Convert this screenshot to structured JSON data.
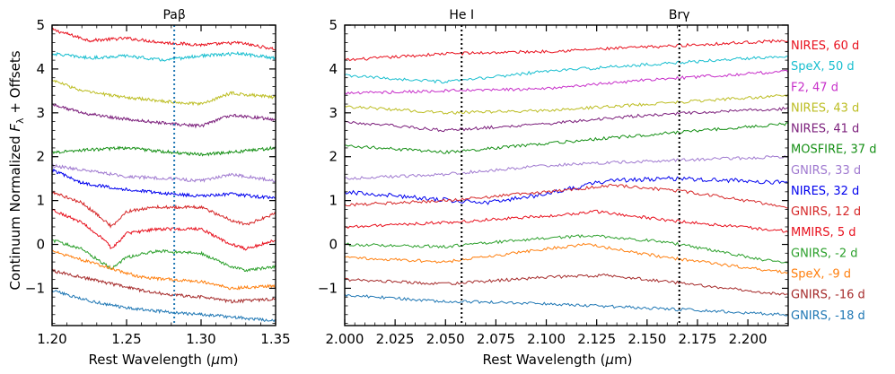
{
  "chart_data": {
    "type": "line",
    "shared": {
      "ylabel_prefix": "Continuum Normalized ",
      "ylabel_var": "F",
      "ylabel_sub": "λ",
      "ylabel_suffix": " + Offsets",
      "xlabel_prefix": "Rest Wavelength (",
      "xlabel_var": "μ",
      "xlabel_suffix": "m)",
      "ylim": [
        -1.85,
        5.0
      ],
      "yticks": [
        -1,
        0,
        1,
        2,
        3,
        4,
        5
      ],
      "ytick_labels": [
        "−1",
        "0",
        "1",
        "2",
        "3",
        "4",
        "5"
      ]
    },
    "legend": [
      {
        "label": "NIRES, 60 d",
        "color": "#e8101d"
      },
      {
        "label": "SpeX, 50 d",
        "color": "#17becf"
      },
      {
        "label": "F2, 47 d",
        "color": "#c72fc9"
      },
      {
        "label": "NIRES, 43 d",
        "color": "#bcbd22"
      },
      {
        "label": "NIRES, 41 d",
        "color": "#7b1e7b"
      },
      {
        "label": "MOSFIRE, 37 d",
        "color": "#148f14"
      },
      {
        "label": "GNIRS, 33 d",
        "color": "#a07ad0"
      },
      {
        "label": "NIRES, 32 d",
        "color": "#0000ee"
      },
      {
        "label": "GNIRS, 12 d",
        "color": "#d62728"
      },
      {
        "label": "MMIRS, 5 d",
        "color": "#e8101d"
      },
      {
        "label": "GNIRS, -2 d",
        "color": "#2ca02c"
      },
      {
        "label": "SpeX, -9 d",
        "color": "#ff7f0e"
      },
      {
        "label": "GNIRS, -16 d",
        "color": "#a52a2a"
      },
      {
        "label": "GNIRS, -18 d",
        "color": "#1f77b4"
      }
    ],
    "panels": [
      {
        "xlim": [
          1.2,
          1.35
        ],
        "xticks": [
          1.2,
          1.25,
          1.3,
          1.35
        ],
        "xtick_labels": [
          "1.20",
          "1.25",
          "1.30",
          "1.35"
        ],
        "lines": [
          {
            "label": "Paβ",
            "x": 1.282,
            "color": "#1f77b4",
            "style": "dotted"
          }
        ],
        "series": [
          {
            "name": "NIRES, 60 d",
            "x": [
              1.2,
              1.225,
              1.25,
              1.275,
              1.3,
              1.325,
              1.35
            ],
            "y": [
              4.9,
              4.65,
              4.7,
              4.6,
              4.55,
              4.6,
              4.45
            ]
          },
          {
            "name": "SpeX, 50 d",
            "x": [
              1.2,
              1.225,
              1.25,
              1.275,
              1.3,
              1.325,
              1.35
            ],
            "y": [
              4.35,
              4.25,
              4.3,
              4.2,
              4.3,
              4.35,
              4.25
            ]
          },
          {
            "name": "NIRES, 43 d",
            "x": [
              1.2,
              1.22,
              1.25,
              1.28,
              1.3,
              1.32,
              1.35
            ],
            "y": [
              3.75,
              3.5,
              3.35,
              3.25,
              3.2,
              3.45,
              3.35
            ]
          },
          {
            "name": "NIRES, 41 d",
            "x": [
              1.2,
              1.22,
              1.25,
              1.28,
              1.3,
              1.32,
              1.35
            ],
            "y": [
              3.2,
              3.0,
              2.85,
              2.75,
              2.7,
              2.95,
              2.85
            ]
          },
          {
            "name": "MOSFIRE, 37 d",
            "x": [
              1.2,
              1.22,
              1.25,
              1.28,
              1.3,
              1.32,
              1.35
            ],
            "y": [
              2.1,
              2.15,
              2.2,
              2.1,
              2.05,
              2.1,
              2.2
            ]
          },
          {
            "name": "GNIRS, 33 d",
            "x": [
              1.2,
              1.22,
              1.25,
              1.28,
              1.3,
              1.32,
              1.35
            ],
            "y": [
              1.8,
              1.7,
              1.55,
              1.5,
              1.45,
              1.6,
              1.45
            ]
          },
          {
            "name": "NIRES, 32 d",
            "x": [
              1.2,
              1.22,
              1.25,
              1.28,
              1.3,
              1.32,
              1.35
            ],
            "y": [
              1.7,
              1.4,
              1.25,
              1.15,
              1.1,
              1.15,
              1.05
            ]
          },
          {
            "name": "GNIRS, 12 d",
            "x": [
              1.2,
              1.22,
              1.235,
              1.24,
              1.25,
              1.27,
              1.3,
              1.32,
              1.33,
              1.35
            ],
            "y": [
              1.2,
              0.95,
              0.55,
              0.4,
              0.75,
              0.85,
              0.85,
              0.55,
              0.45,
              0.7
            ]
          },
          {
            "name": "MMIRS, 5 d",
            "x": [
              1.2,
              1.22,
              1.235,
              1.24,
              1.25,
              1.27,
              1.3,
              1.32,
              1.33,
              1.35
            ],
            "y": [
              0.8,
              0.5,
              0.1,
              -0.1,
              0.25,
              0.35,
              0.35,
              0.0,
              -0.1,
              0.1
            ]
          },
          {
            "name": "GNIRS, -2 d",
            "x": [
              1.2,
              1.22,
              1.235,
              1.24,
              1.25,
              1.27,
              1.3,
              1.32,
              1.33,
              1.35
            ],
            "y": [
              0.1,
              -0.1,
              -0.45,
              -0.55,
              -0.3,
              -0.15,
              -0.2,
              -0.5,
              -0.6,
              -0.5
            ]
          },
          {
            "name": "SpeX, -9 d",
            "x": [
              1.2,
              1.22,
              1.24,
              1.26,
              1.28,
              1.3,
              1.32,
              1.35
            ],
            "y": [
              -0.15,
              -0.35,
              -0.55,
              -0.75,
              -0.8,
              -0.85,
              -1.0,
              -0.95
            ]
          },
          {
            "name": "GNIRS, -16 d",
            "x": [
              1.2,
              1.22,
              1.24,
              1.26,
              1.28,
              1.3,
              1.32,
              1.35
            ],
            "y": [
              -0.6,
              -0.75,
              -0.9,
              -1.05,
              -1.15,
              -1.2,
              -1.3,
              -1.25
            ]
          },
          {
            "name": "GNIRS, -18 d",
            "x": [
              1.2,
              1.22,
              1.25,
              1.28,
              1.3,
              1.32,
              1.35
            ],
            "y": [
              -1.05,
              -1.25,
              -1.45,
              -1.55,
              -1.6,
              -1.65,
              -1.75
            ]
          }
        ]
      },
      {
        "xlim": [
          2.0,
          2.22
        ],
        "xticks": [
          2.0,
          2.025,
          2.05,
          2.075,
          2.1,
          2.125,
          2.15,
          2.175,
          2.2
        ],
        "xtick_labels": [
          "2.000",
          "2.025",
          "2.050",
          "2.075",
          "2.100",
          "2.125",
          "2.150",
          "2.175",
          "2.200"
        ],
        "lines": [
          {
            "label": "He I",
            "x": 2.058,
            "color": "#000000",
            "style": "dotted"
          },
          {
            "label": "Brγ",
            "x": 2.166,
            "color": "#000000",
            "style": "dotted"
          }
        ],
        "series": [
          {
            "name": "NIRES, 60 d",
            "x": [
              2.0,
              2.05,
              2.1,
              2.15,
              2.22
            ],
            "y": [
              4.2,
              4.35,
              4.4,
              4.5,
              4.65
            ]
          },
          {
            "name": "SpeX, 50 d",
            "x": [
              2.0,
              2.05,
              2.1,
              2.15,
              2.22
            ],
            "y": [
              3.85,
              3.7,
              3.95,
              4.1,
              4.3
            ]
          },
          {
            "name": "F2, 47 d",
            "x": [
              2.0,
              2.05,
              2.1,
              2.15,
              2.22
            ],
            "y": [
              3.45,
              3.5,
              3.55,
              3.75,
              3.95
            ]
          },
          {
            "name": "NIRES, 43 d",
            "x": [
              2.0,
              2.05,
              2.1,
              2.15,
              2.22
            ],
            "y": [
              3.15,
              3.0,
              3.05,
              3.2,
              3.4
            ]
          },
          {
            "name": "NIRES, 41 d",
            "x": [
              2.0,
              2.05,
              2.1,
              2.15,
              2.22
            ],
            "y": [
              2.8,
              2.6,
              2.75,
              2.95,
              3.1
            ]
          },
          {
            "name": "MOSFIRE, 37 d",
            "x": [
              2.0,
              2.05,
              2.1,
              2.15,
              2.22
            ],
            "y": [
              2.25,
              2.1,
              2.3,
              2.5,
              2.75
            ]
          },
          {
            "name": "GNIRS, 33 d",
            "x": [
              2.0,
              2.05,
              2.1,
              2.15,
              2.22
            ],
            "y": [
              1.5,
              1.6,
              1.8,
              1.9,
              2.0
            ]
          },
          {
            "name": "NIRES, 32 d",
            "x": [
              2.0,
              2.04,
              2.07,
              2.1,
              2.13,
              2.16,
              2.2,
              2.22
            ],
            "y": [
              1.2,
              1.05,
              0.95,
              1.15,
              1.45,
              1.5,
              1.45,
              1.4
            ]
          },
          {
            "name": "GNIRS, 12 d",
            "x": [
              2.0,
              2.05,
              2.1,
              2.135,
              2.17,
              2.22
            ],
            "y": [
              0.9,
              1.0,
              1.2,
              1.35,
              1.2,
              0.85
            ]
          },
          {
            "name": "MMIRS, 5 d",
            "x": [
              2.0,
              2.05,
              2.1,
              2.125,
              2.16,
              2.22
            ],
            "y": [
              0.4,
              0.5,
              0.65,
              0.75,
              0.55,
              0.3
            ]
          },
          {
            "name": "GNIRS, -2 d",
            "x": [
              2.0,
              2.05,
              2.1,
              2.125,
              2.16,
              2.22
            ],
            "y": [
              0.0,
              -0.05,
              0.15,
              0.2,
              0.05,
              -0.45
            ]
          },
          {
            "name": "SpeX, -9 d",
            "x": [
              2.0,
              2.05,
              2.1,
              2.12,
              2.16,
              2.22
            ],
            "y": [
              -0.3,
              -0.4,
              -0.1,
              0.0,
              -0.3,
              -0.65
            ]
          },
          {
            "name": "GNIRS, -16 d",
            "x": [
              2.0,
              2.05,
              2.1,
              2.13,
              2.17,
              2.22
            ],
            "y": [
              -0.8,
              -0.9,
              -0.75,
              -0.7,
              -0.9,
              -1.15
            ]
          },
          {
            "name": "GNIRS, -18 d",
            "x": [
              2.0,
              2.05,
              2.1,
              2.15,
              2.22
            ],
            "y": [
              -1.15,
              -1.3,
              -1.35,
              -1.45,
              -1.6
            ]
          }
        ]
      }
    ]
  }
}
